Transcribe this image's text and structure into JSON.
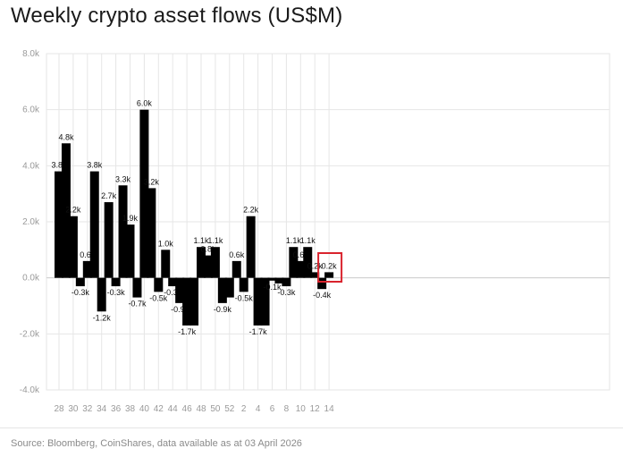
{
  "chart_data": {
    "type": "bar",
    "title": "Weekly crypto asset flows (US$M)",
    "source": "Source: Bloomberg, CoinShares, data available as at 03 April 2026",
    "ylim": [
      -4.0,
      8.0
    ],
    "yticks": [
      "-4.0k",
      "-2.0k",
      "0.0k",
      "2.0k",
      "4.0k",
      "6.0k",
      "8.0k"
    ],
    "ytick_values": [
      -4.0,
      -2.0,
      0.0,
      2.0,
      4.0,
      6.0,
      8.0
    ],
    "xticks": [
      "28",
      "30",
      "32",
      "34",
      "36",
      "38",
      "40",
      "42",
      "44",
      "46",
      "48",
      "50",
      "52",
      "2",
      "4",
      "6",
      "8",
      "10",
      "12",
      "14"
    ],
    "grid": true,
    "highlight_index": 38,
    "colors": {
      "bar": "#000000",
      "highlight_box": "#d9232d",
      "grid": "#e6e6e6"
    },
    "values": [
      3.8,
      4.8,
      2.2,
      -0.3,
      0.6,
      3.8,
      -1.2,
      2.7,
      -0.3,
      3.3,
      1.9,
      -0.7,
      6.0,
      3.2,
      -0.5,
      1.0,
      -0.3,
      -0.9,
      -1.7,
      -1.7,
      1.1,
      0.8,
      1.1,
      -0.9,
      -0.7,
      0.6,
      -0.5,
      2.2,
      -1.7,
      -1.7,
      -0.1,
      -0.2,
      -0.3,
      1.1,
      0.6,
      1.1,
      0.2,
      -0.4,
      0.2
    ],
    "labels": [
      "3.8k",
      "4.8k",
      "2.2k",
      "-0.3k",
      "0.6k",
      "3.8k",
      "-1.2k",
      "2.7k",
      "-0.3k",
      "3.3k",
      "1.9k",
      "-0.7k",
      "6.0k",
      "3.2k",
      "-0.5k",
      "1.0k",
      "-0.3k",
      "-0.9k",
      "-1.7k",
      "",
      "1.1k",
      "0.8k",
      "1.1k",
      "-0.9k",
      "",
      "0.6k",
      "-0.5k",
      "2.2k",
      "-1.7k",
      "",
      "-0.1k",
      "",
      "-0.3k",
      "1.1k",
      "0.6k",
      "1.1k",
      "0.2k",
      "-0.4k",
      "0.2k"
    ]
  }
}
